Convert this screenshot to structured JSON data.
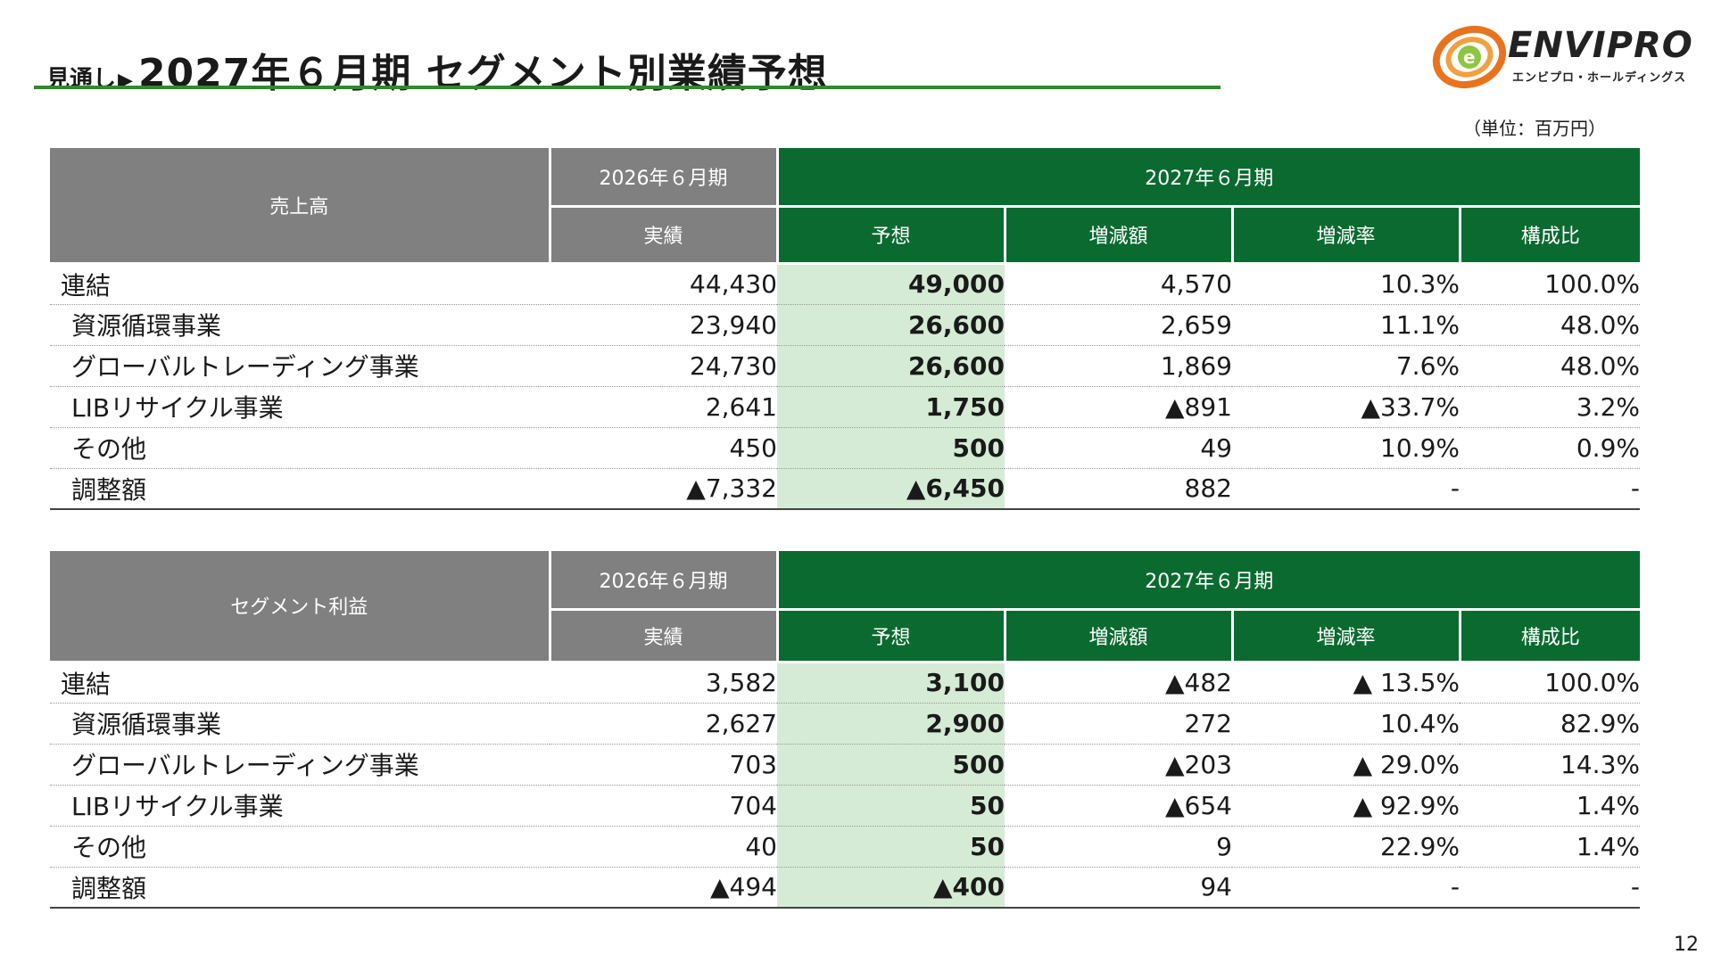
{
  "header": {
    "prefix": "見通し",
    "arrow": "▶",
    "title": "2027年６月期 セグメント別業績予想"
  },
  "logo": {
    "name": "ENVIPRO",
    "subtitle": "エンビプロ・ホールディングス"
  },
  "unit": "（単位：百万円）",
  "page_number": "12",
  "colors": {
    "header_gray": "#808080",
    "header_green": "#0b6a30",
    "forecast_bg": "#d5ebd5",
    "title_rule": "#2e8b2e"
  },
  "tables": [
    {
      "corner": "売上高",
      "period_prev": "2026年６月期",
      "period_next": "2027年６月期",
      "col_actual": "実績",
      "col_forecast": "予想",
      "col_change": "増減額",
      "col_rate": "増減率",
      "col_share": "構成比",
      "rows": [
        {
          "label": "連結",
          "actual": "44,430",
          "forecast": "49,000",
          "change": "4,570",
          "rate": "10.3%",
          "share": "100.0%"
        },
        {
          "label": "資源循環事業",
          "actual": "23,940",
          "forecast": "26,600",
          "change": "2,659",
          "rate": "11.1%",
          "share": "48.0%"
        },
        {
          "label": "グローバルトレーディング事業",
          "actual": "24,730",
          "forecast": "26,600",
          "change": "1,869",
          "rate": "7.6%",
          "share": "48.0%"
        },
        {
          "label": "LIBリサイクル事業",
          "actual": "2,641",
          "forecast": "1,750",
          "change": "▲891",
          "rate": "▲33.7%",
          "share": "3.2%"
        },
        {
          "label": "その他",
          "actual": "450",
          "forecast": "500",
          "change": "49",
          "rate": "10.9%",
          "share": "0.9%"
        },
        {
          "label": "調整額",
          "actual": "▲7,332",
          "forecast": "▲6,450",
          "change": "882",
          "rate": "-",
          "share": "-"
        }
      ]
    },
    {
      "corner": "セグメント利益",
      "period_prev": "2026年６月期",
      "period_next": "2027年６月期",
      "col_actual": "実績",
      "col_forecast": "予想",
      "col_change": "増減額",
      "col_rate": "増減率",
      "col_share": "構成比",
      "rows": [
        {
          "label": "連結",
          "actual": "3,582",
          "forecast": "3,100",
          "change": "▲482",
          "rate": "▲ 13.5%",
          "share": "100.0%"
        },
        {
          "label": "資源循環事業",
          "actual": "2,627",
          "forecast": "2,900",
          "change": "272",
          "rate": "10.4%",
          "share": "82.9%"
        },
        {
          "label": "グローバルトレーディング事業",
          "actual": "703",
          "forecast": "500",
          "change": "▲203",
          "rate": "▲ 29.0%",
          "share": "14.3%"
        },
        {
          "label": "LIBリサイクル事業",
          "actual": "704",
          "forecast": "50",
          "change": "▲654",
          "rate": "▲ 92.9%",
          "share": "1.4%"
        },
        {
          "label": "その他",
          "actual": "40",
          "forecast": "50",
          "change": "9",
          "rate": "22.9%",
          "share": "1.4%"
        },
        {
          "label": "調整額",
          "actual": "▲494",
          "forecast": "▲400",
          "change": "94",
          "rate": "-",
          "share": "-"
        }
      ]
    }
  ]
}
